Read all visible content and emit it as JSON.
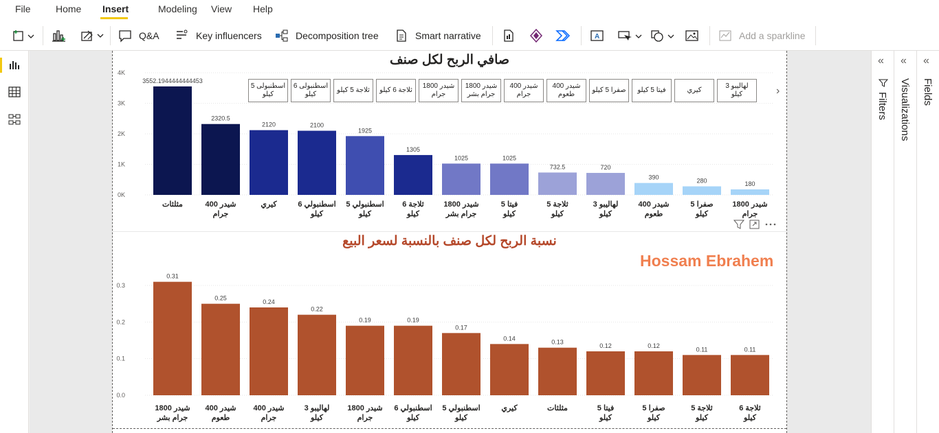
{
  "menu": {
    "file": "File",
    "home": "Home",
    "insert": "Insert",
    "modeling": "Modeling",
    "view": "View",
    "help": "Help"
  },
  "toolbar": {
    "qa": "Q&A",
    "key_influencers": "Key influencers",
    "decomposition_tree": "Decomposition tree",
    "smart_narrative": "Smart narrative",
    "add_sparkline": "Add a sparkline"
  },
  "panes": {
    "filters": "Filters",
    "visualizations": "Visualizations",
    "fields": "Fields"
  },
  "slicer": {
    "items": [
      "لهاليبو 3 كيلو",
      "كيري",
      "فيتا 5 كيلو",
      "صفرا 5 كيلو",
      "شيدر 400 طعوم",
      "شيدر 400 جرام",
      "شيدر 1800 جرام بشر",
      "شيدر 1800 جرام",
      "ثلاجة 6 كيلو",
      "ثلاجة 5 كيلو",
      "اسطنبولى 6 كيلو",
      "اسطنبولى 5 كيلو"
    ]
  },
  "watermark": "Hossam Ebrahem",
  "colors": {
    "ribbon_accent": "#f2c811",
    "bar_orange": "#b0522d",
    "watermark": "#f07f4f",
    "title2": "#b5482a",
    "bar_blue_1": "#0c1650",
    "bar_blue_2": "#1b2a8f",
    "bar_blue_3": "#3f4eb0",
    "bar_blue_4": "#7178c6",
    "bar_blue_5": "#9ca2d8",
    "bar_blue_6": "#a6d4f8"
  },
  "chart_data": [
    {
      "type": "bar",
      "title": "صافي الربح لكل صنف",
      "categories": [
        "مثلثات",
        "شيدر 400 جرام",
        "كيري",
        "اسطنبولي 6 كيلو",
        "اسطنبولي 5 كيلو",
        "ثلاجة 6 كيلو",
        "شيدر 1800 جرام بشر",
        "فيتا 5 كيلو",
        "ثلاجة 5 كيلو",
        "لهاليبو 3 كيلو",
        "شيدر 400 طعوم",
        "صفرا 5 كيلو",
        "شيدر 1800 جرام"
      ],
      "values": [
        3552.1944444444453,
        2320.5,
        2120,
        2100,
        1925,
        1305,
        1025,
        1025,
        732.5,
        720,
        390,
        280,
        180
      ],
      "data_labels": [
        "3552.1944444444453",
        "2320.5",
        "2120",
        "2100",
        "1925",
        "1305",
        "1025",
        "1025",
        "732.5",
        "720",
        "390",
        "280",
        "180"
      ],
      "yticks": [
        "0K",
        "1K",
        "2K",
        "3K",
        "4K"
      ],
      "ylim": [
        0,
        4000
      ],
      "xlabel": "",
      "ylabel": "",
      "grid": true
    },
    {
      "type": "bar",
      "title": "نسبة الربح لكل صنف بالنسبة لسعر البيع",
      "categories": [
        "شيدر 1800 جرام بشر",
        "شيدر 400 طعوم",
        "شيدر 400 جرام",
        "لهاليبو 3 كيلو",
        "شيدر 1800 جرام",
        "اسطنبولي 6 كيلو",
        "اسطنبولي 5 كيلو",
        "كيري",
        "مثلثات",
        "فيتا 5 كيلو",
        "صفرا 5 كيلو",
        "ثلاجة 5 كيلو",
        "ثلاجة 6 كيلو"
      ],
      "values": [
        0.31,
        0.25,
        0.24,
        0.22,
        0.19,
        0.19,
        0.17,
        0.14,
        0.13,
        0.12,
        0.12,
        0.11,
        0.11
      ],
      "data_labels": [
        "0.31",
        "0.25",
        "0.24",
        "0.22",
        "0.19",
        "0.19",
        "0.17",
        "0.14",
        "0.13",
        "0.12",
        "0.12",
        "0.11",
        "0.11"
      ],
      "yticks": [
        "0.0",
        "0.1",
        "0.2",
        "0.3"
      ],
      "ylim": [
        0,
        0.33
      ],
      "xlabel": "",
      "ylabel": "",
      "grid": true
    }
  ]
}
